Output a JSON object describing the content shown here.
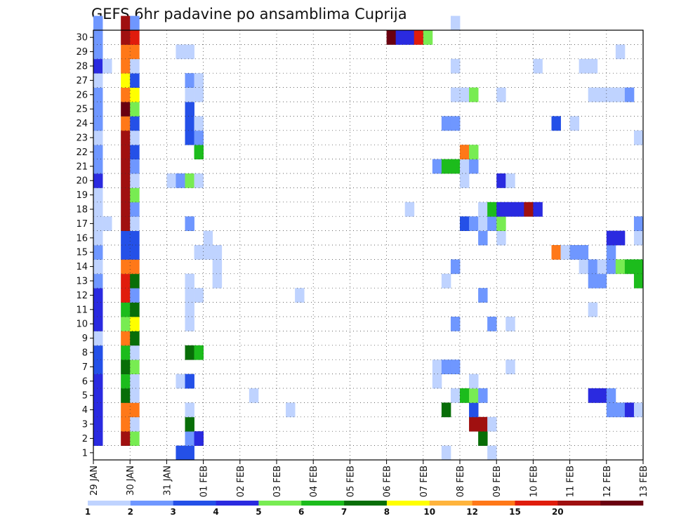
{
  "chart_data": {
    "type": "heatmap",
    "title": "GEFS 6hr padavine po ansamblima Cuprija",
    "xlabel": "",
    "ylabel": "",
    "x_ticks": [
      "29 JAN",
      "30 JAN",
      "31 JAN",
      "01 FEB",
      "02 FEB",
      "03 FEB",
      "04 FEB",
      "05 FEB",
      "06 FEB",
      "07 FEB",
      "08 FEB",
      "09 FEB",
      "10 FEB",
      "11 FEB",
      "12 FEB",
      "13 FEB"
    ],
    "y_ticks": [
      "1",
      "2",
      "3",
      "4",
      "5",
      "6",
      "7",
      "8",
      "9",
      "10",
      "11",
      "12",
      "13",
      "14",
      "15",
      "16",
      "17",
      "18",
      "19",
      "20",
      "21",
      "22",
      "23",
      "24",
      "25",
      "26",
      "27",
      "28",
      "29",
      "30"
    ],
    "grid": true,
    "colorbar": {
      "levels": [
        "1",
        "2",
        "3",
        "4",
        "5",
        "6",
        "7",
        "8",
        "10",
        "12",
        "15",
        "20"
      ],
      "colors": [
        "#bfd3ff",
        "#6f97ff",
        "#2450e8",
        "#2a2ae0",
        "#78ec52",
        "#1cbc1c",
        "#086e08",
        "#ffff00",
        "#ffb43c",
        "#ff7818",
        "#e01c0c",
        "#a01010",
        "#6a0010"
      ]
    },
    "value_unit": "mm / 6h class index (0=1-2 .. 12=>20)",
    "cells": [
      [
        0,
        1,
        3
      ],
      [
        0,
        2,
        3
      ],
      [
        0,
        3,
        3
      ],
      [
        0,
        4,
        3
      ],
      [
        0,
        5,
        3
      ],
      [
        0,
        6,
        2
      ],
      [
        0,
        7,
        2
      ],
      [
        0,
        8,
        0
      ],
      [
        0,
        9,
        3
      ],
      [
        0,
        10,
        3
      ],
      [
        0,
        11,
        3
      ],
      [
        0,
        12,
        1
      ],
      [
        0,
        13,
        0
      ],
      [
        0,
        14,
        1
      ],
      [
        0,
        15,
        0
      ],
      [
        0,
        16,
        0
      ],
      [
        0,
        17,
        0
      ],
      [
        0,
        18,
        0
      ],
      [
        0,
        19,
        3
      ],
      [
        0,
        20,
        1
      ],
      [
        0,
        21,
        1
      ],
      [
        0,
        22,
        0
      ],
      [
        0,
        23,
        1
      ],
      [
        0,
        24,
        1
      ],
      [
        0,
        25,
        1
      ],
      [
        0,
        26,
        0
      ],
      [
        0,
        27,
        3
      ],
      [
        0,
        28,
        1
      ],
      [
        0,
        29,
        1
      ],
      [
        0,
        30,
        1
      ],
      [
        1,
        27,
        0
      ],
      [
        1,
        16,
        0
      ],
      [
        3,
        1,
        11
      ],
      [
        3,
        2,
        9
      ],
      [
        3,
        3,
        9
      ],
      [
        3,
        4,
        6
      ],
      [
        3,
        5,
        5
      ],
      [
        3,
        6,
        6
      ],
      [
        3,
        7,
        5
      ],
      [
        3,
        8,
        9
      ],
      [
        3,
        9,
        4
      ],
      [
        3,
        10,
        5
      ],
      [
        3,
        11,
        10
      ],
      [
        3,
        12,
        10
      ],
      [
        3,
        13,
        9
      ],
      [
        3,
        14,
        2
      ],
      [
        3,
        15,
        2
      ],
      [
        3,
        16,
        11
      ],
      [
        3,
        17,
        11
      ],
      [
        3,
        18,
        11
      ],
      [
        3,
        19,
        11
      ],
      [
        3,
        20,
        11
      ],
      [
        3,
        21,
        11
      ],
      [
        3,
        22,
        11
      ],
      [
        3,
        23,
        9
      ],
      [
        3,
        24,
        12
      ],
      [
        3,
        25,
        9
      ],
      [
        3,
        26,
        7
      ],
      [
        3,
        27,
        9
      ],
      [
        3,
        28,
        9
      ],
      [
        3,
        29,
        11
      ],
      [
        3,
        30,
        11
      ],
      [
        4,
        1,
        4
      ],
      [
        4,
        2,
        0
      ],
      [
        4,
        3,
        9
      ],
      [
        4,
        4,
        0
      ],
      [
        4,
        5,
        0
      ],
      [
        4,
        6,
        4
      ],
      [
        4,
        7,
        0
      ],
      [
        4,
        8,
        6
      ],
      [
        4,
        9,
        7
      ],
      [
        4,
        10,
        6
      ],
      [
        4,
        11,
        1
      ],
      [
        4,
        12,
        6
      ],
      [
        4,
        13,
        9
      ],
      [
        4,
        14,
        2
      ],
      [
        4,
        15,
        2
      ],
      [
        4,
        16,
        0
      ],
      [
        4,
        17,
        1
      ],
      [
        4,
        18,
        4
      ],
      [
        4,
        19,
        0
      ],
      [
        4,
        20,
        1
      ],
      [
        4,
        21,
        2
      ],
      [
        4,
        22,
        0
      ],
      [
        4,
        23,
        2
      ],
      [
        4,
        24,
        4
      ],
      [
        4,
        25,
        7
      ],
      [
        4,
        26,
        2
      ],
      [
        4,
        27,
        0
      ],
      [
        4,
        28,
        9
      ],
      [
        4,
        29,
        10
      ],
      [
        4,
        30,
        1
      ],
      [
        8,
        19,
        0
      ],
      [
        9,
        0,
        2
      ],
      [
        9,
        5,
        0
      ],
      [
        9,
        19,
        1
      ],
      [
        9,
        28,
        0
      ],
      [
        10,
        0,
        2
      ],
      [
        10,
        1,
        1
      ],
      [
        10,
        2,
        6
      ],
      [
        10,
        3,
        0
      ],
      [
        10,
        5,
        2
      ],
      [
        10,
        7,
        6
      ],
      [
        10,
        9,
        0
      ],
      [
        10,
        10,
        0
      ],
      [
        10,
        11,
        0
      ],
      [
        10,
        12,
        0
      ],
      [
        10,
        16,
        1
      ],
      [
        10,
        19,
        4
      ],
      [
        10,
        22,
        2
      ],
      [
        10,
        23,
        2
      ],
      [
        10,
        24,
        2
      ],
      [
        10,
        25,
        0
      ],
      [
        10,
        26,
        1
      ],
      [
        10,
        28,
        0
      ],
      [
        11,
        1,
        3
      ],
      [
        11,
        7,
        5
      ],
      [
        11,
        11,
        0
      ],
      [
        11,
        14,
        0
      ],
      [
        11,
        19,
        0
      ],
      [
        11,
        21,
        5
      ],
      [
        11,
        22,
        1
      ],
      [
        11,
        23,
        0
      ],
      [
        11,
        25,
        0
      ],
      [
        11,
        26,
        0
      ],
      [
        12,
        14,
        0
      ],
      [
        12,
        15,
        0
      ],
      [
        13,
        12,
        0
      ],
      [
        13,
        13,
        0
      ],
      [
        13,
        14,
        0
      ],
      [
        17,
        4,
        0
      ],
      [
        21,
        3,
        0
      ],
      [
        22,
        11,
        0
      ],
      [
        32,
        29,
        12
      ],
      [
        33,
        29,
        3
      ],
      [
        34,
        29,
        3
      ],
      [
        35,
        29,
        10
      ],
      [
        36,
        29,
        4
      ],
      [
        34,
        17,
        0
      ],
      [
        37,
        5,
        0
      ],
      [
        37,
        6,
        0
      ],
      [
        37,
        20,
        1
      ],
      [
        38,
        6,
        1
      ],
      [
        38,
        12,
        0
      ],
      [
        38,
        23,
        1
      ],
      [
        38,
        3,
        6
      ],
      [
        38,
        0,
        0
      ],
      [
        38,
        20,
        5
      ],
      [
        39,
        4,
        0
      ],
      [
        39,
        6,
        1
      ],
      [
        39,
        9,
        1
      ],
      [
        39,
        13,
        1
      ],
      [
        39,
        20,
        5
      ],
      [
        39,
        23,
        1
      ],
      [
        39,
        25,
        0
      ],
      [
        39,
        30,
        0
      ],
      [
        39,
        27,
        0
      ],
      [
        40,
        4,
        5
      ],
      [
        40,
        16,
        2
      ],
      [
        40,
        19,
        0
      ],
      [
        40,
        20,
        0
      ],
      [
        40,
        21,
        9
      ],
      [
        40,
        25,
        0
      ],
      [
        41,
        2,
        11
      ],
      [
        41,
        3,
        2
      ],
      [
        41,
        4,
        4
      ],
      [
        41,
        5,
        0
      ],
      [
        41,
        16,
        1
      ],
      [
        41,
        20,
        1
      ],
      [
        41,
        21,
        4
      ],
      [
        41,
        25,
        4
      ],
      [
        42,
        1,
        6
      ],
      [
        42,
        2,
        11
      ],
      [
        42,
        4,
        1
      ],
      [
        42,
        11,
        1
      ],
      [
        42,
        15,
        1
      ],
      [
        42,
        16,
        0
      ],
      [
        42,
        17,
        0
      ],
      [
        43,
        0,
        0
      ],
      [
        43,
        2,
        0
      ],
      [
        43,
        9,
        1
      ],
      [
        43,
        16,
        1
      ],
      [
        43,
        17,
        5
      ],
      [
        44,
        15,
        0
      ],
      [
        44,
        16,
        4
      ],
      [
        44,
        17,
        3
      ],
      [
        44,
        19,
        3
      ],
      [
        44,
        25,
        0
      ],
      [
        45,
        6,
        0
      ],
      [
        45,
        9,
        0
      ],
      [
        45,
        17,
        3
      ],
      [
        45,
        19,
        0
      ],
      [
        46,
        17,
        3
      ],
      [
        47,
        17,
        11
      ],
      [
        48,
        17,
        3
      ],
      [
        48,
        27,
        0
      ],
      [
        50,
        23,
        2
      ],
      [
        50,
        14,
        9
      ],
      [
        51,
        14,
        0
      ],
      [
        52,
        14,
        1
      ],
      [
        52,
        23,
        0
      ],
      [
        53,
        13,
        0
      ],
      [
        53,
        14,
        1
      ],
      [
        53,
        27,
        0
      ],
      [
        54,
        10,
        0
      ],
      [
        54,
        12,
        1
      ],
      [
        54,
        13,
        1
      ],
      [
        54,
        4,
        3
      ],
      [
        54,
        25,
        0
      ],
      [
        54,
        27,
        0
      ],
      [
        55,
        4,
        3
      ],
      [
        55,
        12,
        1
      ],
      [
        55,
        13,
        0
      ],
      [
        55,
        25,
        0
      ],
      [
        56,
        3,
        1
      ],
      [
        56,
        4,
        1
      ],
      [
        56,
        13,
        1
      ],
      [
        56,
        14,
        1
      ],
      [
        56,
        15,
        3
      ],
      [
        56,
        25,
        0
      ],
      [
        57,
        3,
        1
      ],
      [
        57,
        13,
        4
      ],
      [
        57,
        15,
        3
      ],
      [
        57,
        25,
        0
      ],
      [
        57,
        28,
        0
      ],
      [
        58,
        3,
        3
      ],
      [
        58,
        13,
        5
      ],
      [
        58,
        25,
        1
      ],
      [
        59,
        3,
        0
      ],
      [
        59,
        12,
        5
      ],
      [
        59,
        13,
        5
      ],
      [
        59,
        15,
        0
      ],
      [
        59,
        16,
        1
      ],
      [
        59,
        22,
        0
      ]
    ]
  }
}
